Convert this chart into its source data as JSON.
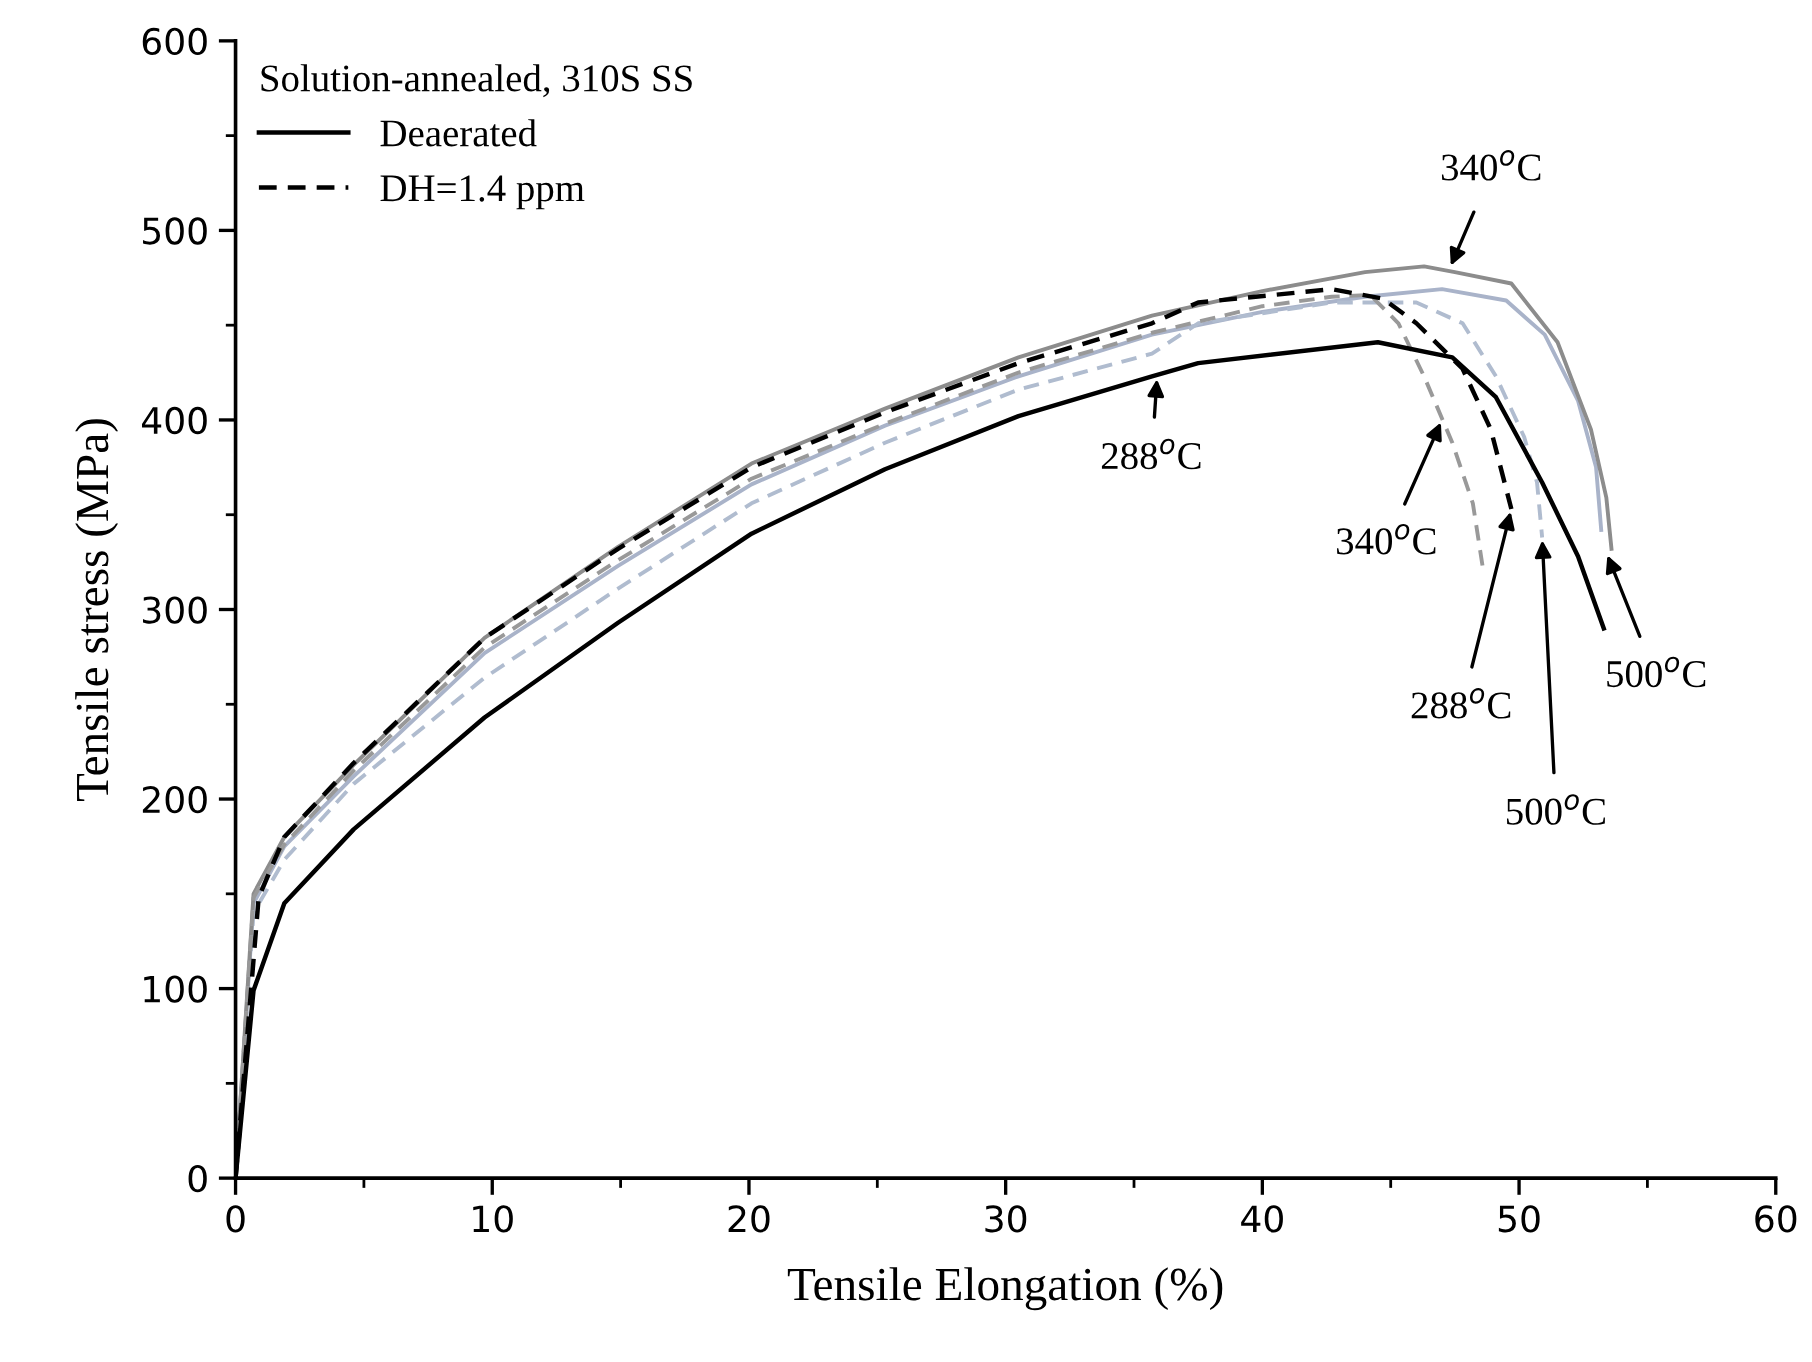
{
  "chart_data": {
    "type": "line",
    "xlabel": "Tensile Elongation (%)",
    "ylabel": "Tensile stress (MPa)",
    "legend_title": "Solution-annealed, 310S SS",
    "legend": "top left",
    "grid": false,
    "xlim": [
      0,
      60
    ],
    "xticks": [
      0,
      10,
      20,
      30,
      40,
      50,
      60
    ],
    "ylim": [
      0,
      600
    ],
    "yticks": [
      0,
      100,
      200,
      300,
      400,
      500,
      600
    ],
    "series": [
      {
        "color": "#a9b3c9",
        "line_style": "solid",
        "x": [
          0,
          0.7,
          1.9,
          4.6,
          9.7,
          14.9,
          20.1,
          25.3,
          30.5,
          35.7,
          40,
          44,
          47,
          49.5,
          51,
          52.3,
          53,
          53.2
        ],
        "values": [
          0,
          145,
          175,
          212,
          277,
          323,
          366,
          397,
          423,
          445,
          457,
          465,
          469,
          463,
          445,
          410,
          375,
          342
        ]
      },
      {
        "color": "#8c8c8c",
        "line_style": "solid",
        "x": [
          0,
          0.7,
          1.9,
          4.6,
          9.7,
          14.9,
          20.1,
          25.3,
          30.5,
          35.7,
          40,
          44,
          46.3,
          47.5,
          49.7,
          51.5,
          52.8,
          53.4,
          53.6
        ],
        "values": [
          0,
          150,
          180,
          218,
          285,
          333,
          377,
          406,
          433,
          455,
          468,
          478,
          481,
          478,
          472,
          441,
          395,
          359,
          332
        ]
      },
      {
        "color": "#b0bccf",
        "line_style": "dashed",
        "x": [
          0,
          0.7,
          1.9,
          4.6,
          9.7,
          14.9,
          20.1,
          25.3,
          30.5,
          35.7,
          37.5,
          42.7,
          46,
          47.8,
          49.1,
          50.2,
          50.7,
          50.9
        ],
        "values": [
          0,
          140,
          168,
          208,
          264,
          311,
          356,
          388,
          416,
          435,
          451,
          462,
          462,
          451,
          423,
          391,
          367,
          338
        ]
      },
      {
        "color": "#999999",
        "line_style": "dashed",
        "x": [
          0,
          0.7,
          1.9,
          4.6,
          9.7,
          14.9,
          20.1,
          25.3,
          30.5,
          35.7,
          40,
          42.7,
          44.2,
          45.3,
          46.3,
          47.4,
          48.2,
          48.6
        ],
        "values": [
          0,
          148,
          176,
          215,
          280,
          326,
          369,
          398,
          425,
          446,
          460,
          465,
          466,
          451,
          423,
          388,
          356,
          321
        ]
      },
      {
        "name": "Deaerated",
        "color": "#000000",
        "line_style": "solid",
        "x": [
          0,
          0.7,
          1.9,
          4.6,
          9.7,
          14.9,
          20.1,
          25.3,
          30.5,
          35.7,
          37.5,
          44.5,
          47.4,
          49.1,
          50.9,
          52.3,
          53.3
        ],
        "values": [
          0,
          99,
          145,
          184,
          243,
          293,
          340,
          374,
          402,
          423,
          430,
          441,
          433,
          412,
          367,
          328,
          290
        ]
      },
      {
        "name": "DH=1.4 ppm",
        "color": "#000000",
        "line_style": "dashed",
        "x": [
          0,
          0.9,
          1.9,
          4.6,
          9.7,
          14.9,
          20.1,
          25.3,
          30.5,
          35.7,
          37.5,
          42.7,
          44.7,
          46.0,
          47.8,
          48.9,
          49.7
        ],
        "values": [
          0,
          148,
          180,
          219,
          285,
          332,
          375,
          404,
          430,
          451,
          462,
          469,
          464,
          451,
          427,
          395,
          353
        ]
      }
    ],
    "annotations": [
      {
        "text": "340$^{o}$C",
        "x": 47.3,
        "y": 480
      },
      {
        "text": "288$^{o}$C",
        "x": 35.9,
        "y": 423
      },
      {
        "text": "340$^{o}$C",
        "x": 47.0,
        "y": 400
      },
      {
        "text": "288$^{o}$C",
        "x": 49.7,
        "y": 353
      },
      {
        "text": "500$^{o}$C",
        "x": 50.9,
        "y": 338
      },
      {
        "text": "500$^{o}$C",
        "x": 53.4,
        "y": 330
      }
    ]
  }
}
